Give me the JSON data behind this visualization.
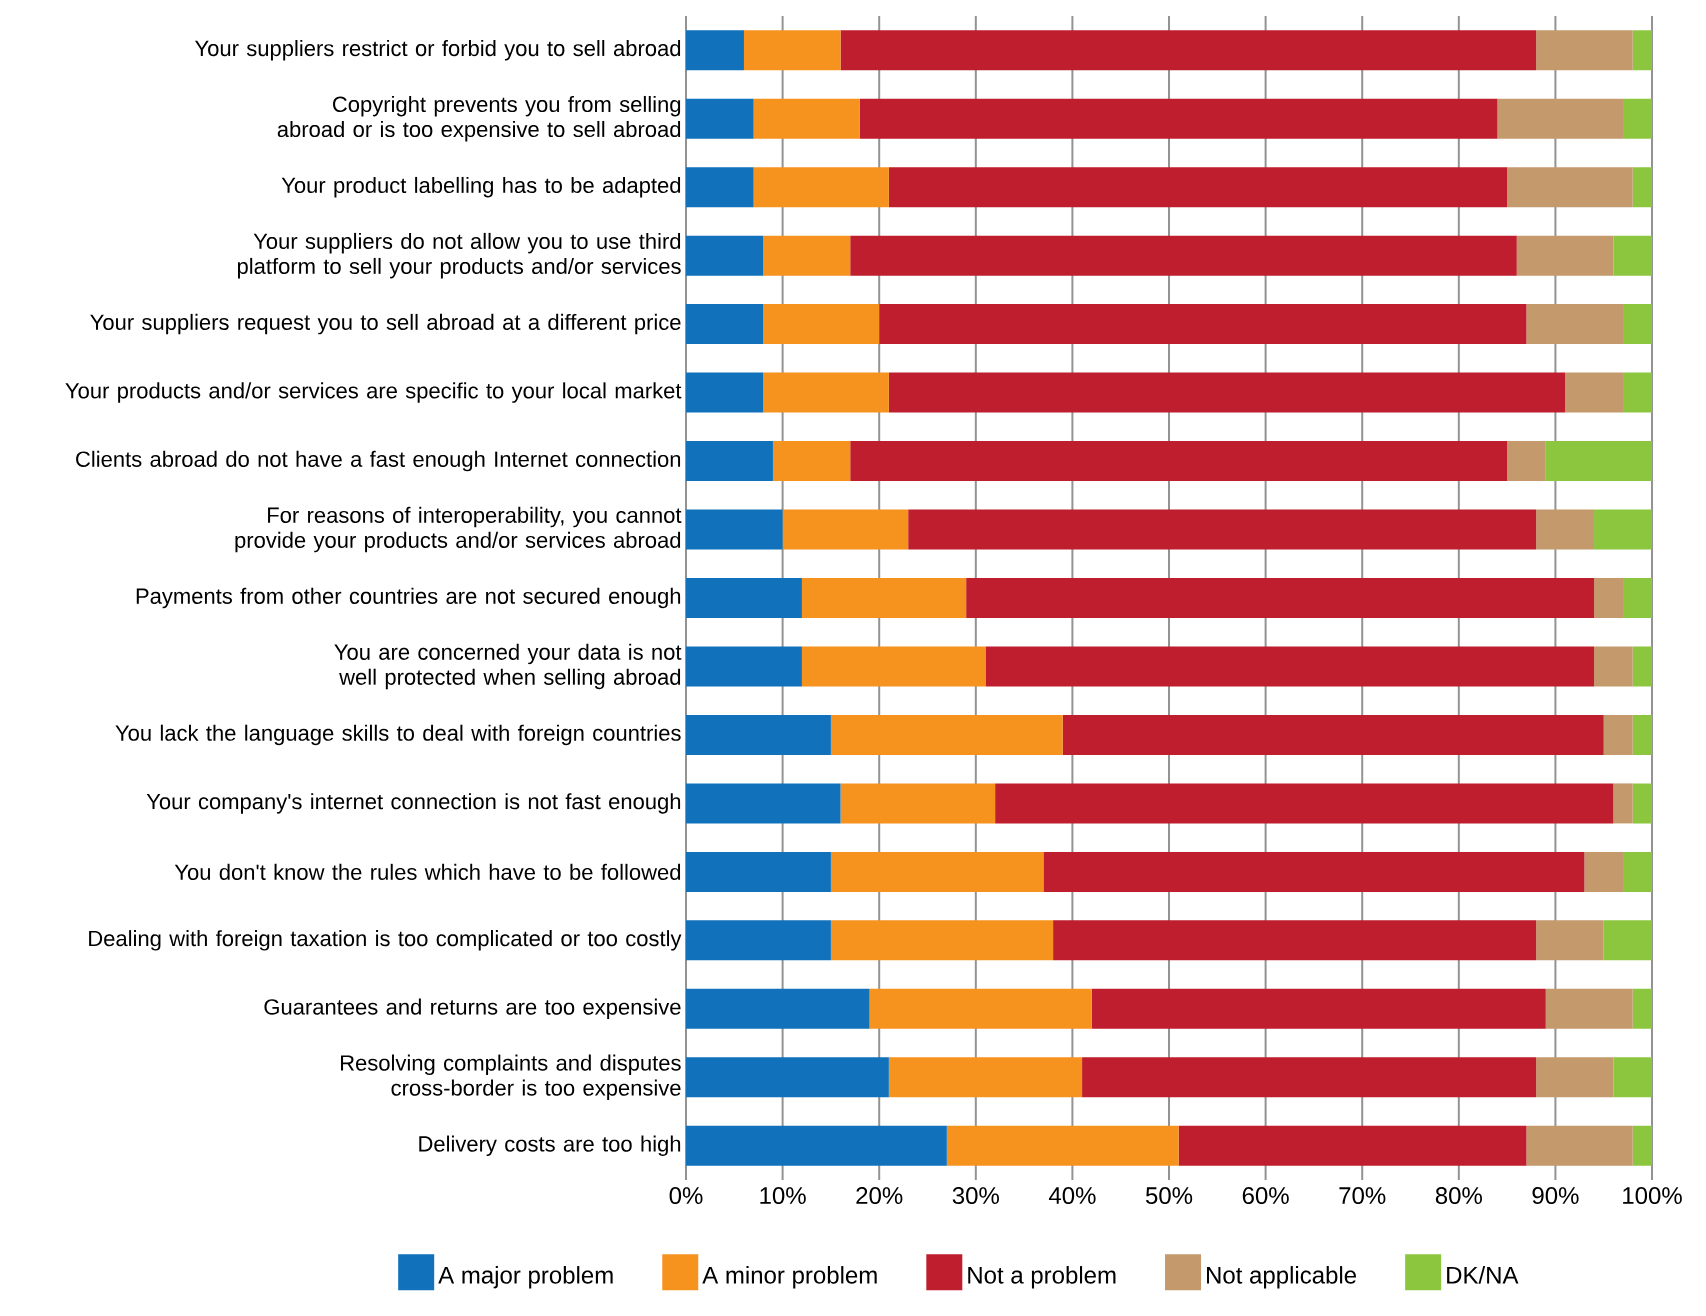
{
  "chart_data": {
    "type": "bar",
    "orientation": "horizontal",
    "stacked": true,
    "grid": "x",
    "legend": "bottom",
    "categories": [
      "Your suppliers restrict or forbid you to sell abroad",
      "Copyright prevents you from selling abroad or is too expensive to sell abroad",
      "Your product labelling has to be adapted",
      "Your suppliers do not allow you to use third platform to sell your products and/or services",
      "Your suppliers request you to sell abroad at a different price",
      "Your products and/or services are specific to your local market",
      "Clients abroad do not have a fast enough Internet connection",
      "For reasons of interoperability, you cannot provide your products and/or services abroad",
      "Payments from other countries are not secured enough",
      "You are concerned your data is not well protected when selling abroad",
      "You lack the language skills to deal with foreign countries",
      "Your company's internet connection is not fast enough",
      "You don't know the rules which have to be followed",
      "Dealing with foreign taxation is too complicated or too costly",
      "Guarantees and returns are too expensive",
      "Resolving complaints and disputes cross-border is too expensive",
      "Delivery costs are too high"
    ],
    "series": [
      {
        "name": "A major problem",
        "color": "#1172bb",
        "values": [
          6,
          7,
          7,
          8,
          8,
          8,
          9,
          10,
          12,
          12,
          15,
          16,
          15,
          15,
          19,
          21,
          27
        ]
      },
      {
        "name": "A minor problem",
        "color": "#f6921e",
        "values": [
          10,
          11,
          14,
          9,
          12,
          13,
          8,
          13,
          17,
          19,
          24,
          16,
          22,
          23,
          23,
          20,
          24
        ]
      },
      {
        "name": "Not a problem",
        "color": "#be1e2d",
        "values": [
          72,
          66,
          64,
          69,
          67,
          70,
          68,
          65,
          65,
          63,
          56,
          64,
          56,
          50,
          47,
          47,
          36
        ]
      },
      {
        "name": "Not applicable",
        "color": "#c4996c",
        "values": [
          10,
          13,
          13,
          10,
          10,
          6,
          4,
          6,
          3,
          4,
          3,
          2,
          4,
          7,
          9,
          8,
          11
        ]
      },
      {
        "name": "DK/NA",
        "color": "#8cc63f",
        "values": [
          2,
          3,
          2,
          4,
          3,
          3,
          11,
          6,
          3,
          2,
          2,
          2,
          3,
          5,
          2,
          4,
          2
        ]
      }
    ],
    "xlim": [
      0,
      100
    ],
    "xticks": [
      {
        "value": 0,
        "label": "0%"
      },
      {
        "value": 10,
        "label": "10%"
      },
      {
        "value": 20,
        "label": "20%"
      },
      {
        "value": 30,
        "label": "30%"
      },
      {
        "value": 40,
        "label": "40%"
      },
      {
        "value": 50,
        "label": "50%"
      },
      {
        "value": 60,
        "label": "60%"
      },
      {
        "value": 70,
        "label": "70%"
      },
      {
        "value": 80,
        "label": "80%"
      },
      {
        "value": 90,
        "label": "90%"
      },
      {
        "value": 100,
        "label": "100%"
      }
    ]
  }
}
